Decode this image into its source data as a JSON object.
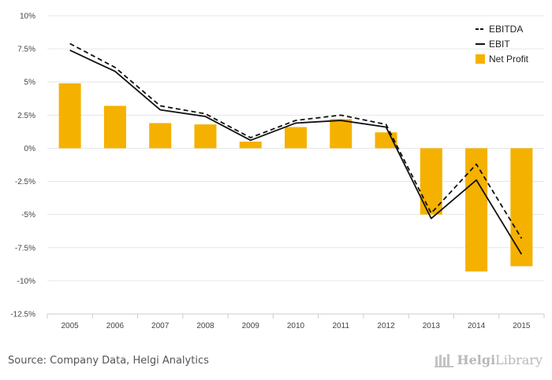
{
  "chart_data": {
    "type": "bar",
    "categories": [
      "2005",
      "2006",
      "2007",
      "2008",
      "2009",
      "2010",
      "2011",
      "2012",
      "2013",
      "2014",
      "2015"
    ],
    "series": [
      {
        "name": "Net Profit",
        "type": "bar",
        "color": "#f5b100",
        "values": [
          4.9,
          3.2,
          1.9,
          1.8,
          0.5,
          1.6,
          2.2,
          1.2,
          -5.0,
          -9.3,
          -8.9
        ]
      },
      {
        "name": "EBITDA",
        "type": "line",
        "style": "dashed",
        "color": "#111111",
        "values": [
          7.9,
          6.1,
          3.2,
          2.6,
          0.8,
          2.1,
          2.5,
          1.8,
          -4.9,
          -1.2,
          -6.8
        ]
      },
      {
        "name": "EBIT",
        "type": "line",
        "style": "solid",
        "color": "#111111",
        "values": [
          7.4,
          5.8,
          2.9,
          2.4,
          0.6,
          1.9,
          2.1,
          1.6,
          -5.3,
          -2.4,
          -8.0
        ]
      }
    ],
    "y_ticks": [
      10,
      7.5,
      5,
      2.5,
      0,
      -2.5,
      -5,
      -7.5,
      -10,
      -12.5
    ],
    "y_tick_labels": [
      "10%",
      "7.5%",
      "5%",
      "2.5%",
      "0%",
      "-2.5%",
      "-5%",
      "-7.5%",
      "-10%",
      "-12.5%"
    ],
    "ylim": [
      -12.5,
      10
    ],
    "grid": true,
    "legend_position": "top-right",
    "legend": [
      "EBITDA",
      "EBIT",
      "Net Profit"
    ]
  },
  "footer": {
    "source": "Source: Company Data, Helgi Analytics",
    "logo_part1": "Helgi",
    "logo_part2": "Library"
  }
}
